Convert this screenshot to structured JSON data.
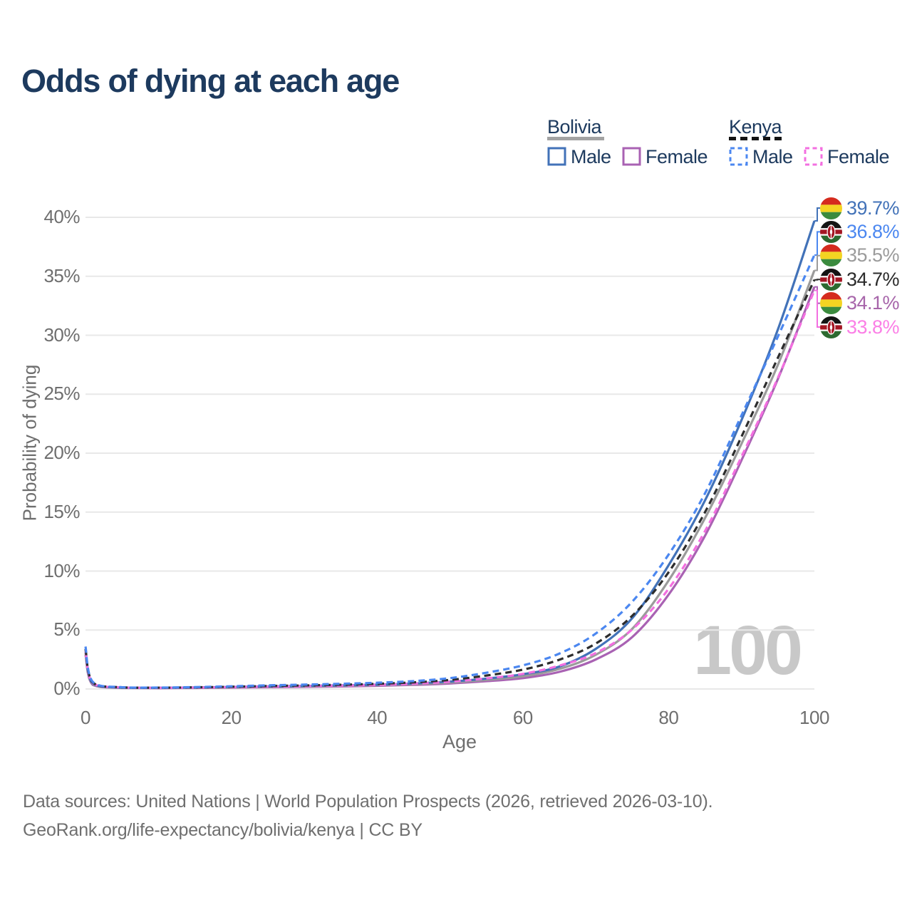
{
  "header": {
    "title": "Odds of dying at each age"
  },
  "legend": {
    "bolivia": {
      "heading": "Bolivia",
      "male_label": "Male",
      "female_label": "Female"
    },
    "kenya": {
      "heading": "Kenya",
      "male_label": "Male",
      "female_label": "Female"
    }
  },
  "watermark": "100",
  "footer": {
    "line1": "Data sources: United Nations | World Population Prospects (2026, retrieved 2026-03-10).",
    "line2": "GeoRank.org/life-expectancy/bolivia/kenya | CC BY"
  },
  "theme": {
    "title_color": "#1d3a5e",
    "axis_text_color": "#6e6e6e",
    "grid_color": "#e8e8e8",
    "watermark_color": "#c8c8c8",
    "footer_color": "#6f6f6f",
    "bolivia_underline_color": "#a3a3a3",
    "kenya_underline_color": "#141414"
  },
  "chart_data": {
    "type": "line",
    "title": "Odds of dying at each age",
    "xlabel": "Age",
    "ylabel": "Probability of dying",
    "xlim": [
      0,
      100
    ],
    "ylim": [
      0,
      40
    ],
    "x_ticks": [
      0,
      20,
      40,
      60,
      80,
      100
    ],
    "y_ticks": [
      0,
      5,
      10,
      15,
      20,
      25,
      30,
      35,
      40
    ],
    "y_tick_suffix": "%",
    "grid": "horizontal-only",
    "legend_position": "top-right",
    "age_counter_watermark": "100",
    "ages": [
      0,
      1,
      5,
      10,
      15,
      20,
      25,
      30,
      35,
      40,
      45,
      50,
      55,
      60,
      65,
      70,
      75,
      80,
      85,
      90,
      95,
      100
    ],
    "series": [
      {
        "id": "bolivia-male",
        "name": "Bolivia Male",
        "country": "Bolivia",
        "sex": "male",
        "flag": "bolivia",
        "color": "#4272b8",
        "label_color": "#4272b8",
        "dash": false,
        "end_label": "39.7%",
        "values": [
          3.4,
          0.45,
          0.12,
          0.1,
          0.13,
          0.17,
          0.22,
          0.26,
          0.31,
          0.37,
          0.47,
          0.63,
          0.88,
          1.25,
          1.9,
          3.4,
          6.0,
          10.5,
          16.0,
          22.8,
          30.5,
          39.7
        ]
      },
      {
        "id": "bolivia-female",
        "name": "Bolivia Female",
        "country": "Bolivia",
        "sex": "female",
        "flag": "bolivia",
        "color": "#a962b3",
        "label_color": "#a765aa",
        "dash": false,
        "end_label": "34.1%",
        "values": [
          2.9,
          0.35,
          0.09,
          0.07,
          0.09,
          0.12,
          0.15,
          0.18,
          0.22,
          0.27,
          0.35,
          0.47,
          0.66,
          0.92,
          1.45,
          2.5,
          4.4,
          8.0,
          13.0,
          19.4,
          26.3,
          34.1
        ]
      },
      {
        "id": "bolivia-both",
        "name": "Bolivia (both sexes)",
        "country": "Bolivia",
        "sex": "both",
        "flag": "bolivia",
        "color": "#9b9b9b",
        "label_color": "#9b9b9b",
        "dash": false,
        "end_label": "35.5%",
        "values": [
          3.1,
          0.4,
          0.1,
          0.09,
          0.11,
          0.15,
          0.19,
          0.22,
          0.27,
          0.32,
          0.41,
          0.55,
          0.77,
          1.08,
          1.7,
          2.9,
          5.1,
          9.2,
          14.5,
          20.8,
          27.5,
          35.5
        ]
      },
      {
        "id": "kenya-male",
        "name": "Kenya Male",
        "country": "Kenya",
        "sex": "male",
        "flag": "kenya",
        "color": "#4b87f0",
        "label_color": "#4b87f0",
        "dash": true,
        "end_label": "36.8%",
        "values": [
          3.6,
          0.6,
          0.15,
          0.12,
          0.16,
          0.23,
          0.31,
          0.37,
          0.44,
          0.53,
          0.67,
          0.92,
          1.38,
          2.0,
          3.0,
          4.7,
          7.4,
          11.4,
          16.6,
          23.2,
          29.9,
          36.8
        ]
      },
      {
        "id": "kenya-female",
        "name": "Kenya Female",
        "country": "Kenya",
        "sex": "female",
        "flag": "kenya",
        "color": "#f36fe0",
        "label_color": "#fb7fe6",
        "dash": true,
        "end_label": "33.8%",
        "values": [
          3.2,
          0.5,
          0.13,
          0.1,
          0.12,
          0.16,
          0.2,
          0.24,
          0.29,
          0.35,
          0.45,
          0.62,
          0.9,
          1.28,
          1.98,
          3.05,
          5.05,
          8.5,
          13.4,
          19.7,
          26.4,
          33.8
        ]
      },
      {
        "id": "kenya-both",
        "name": "Kenya (both sexes)",
        "country": "Kenya",
        "sex": "both",
        "flag": "kenya",
        "color": "#2d2d2d",
        "label_color": "#2b2b2b",
        "dash": true,
        "end_label": "34.7%",
        "values": [
          3.4,
          0.55,
          0.14,
          0.11,
          0.14,
          0.19,
          0.25,
          0.3,
          0.36,
          0.44,
          0.56,
          0.77,
          1.14,
          1.64,
          2.48,
          3.85,
          6.2,
          9.9,
          15.0,
          21.4,
          28.1,
          34.7
        ]
      }
    ]
  }
}
